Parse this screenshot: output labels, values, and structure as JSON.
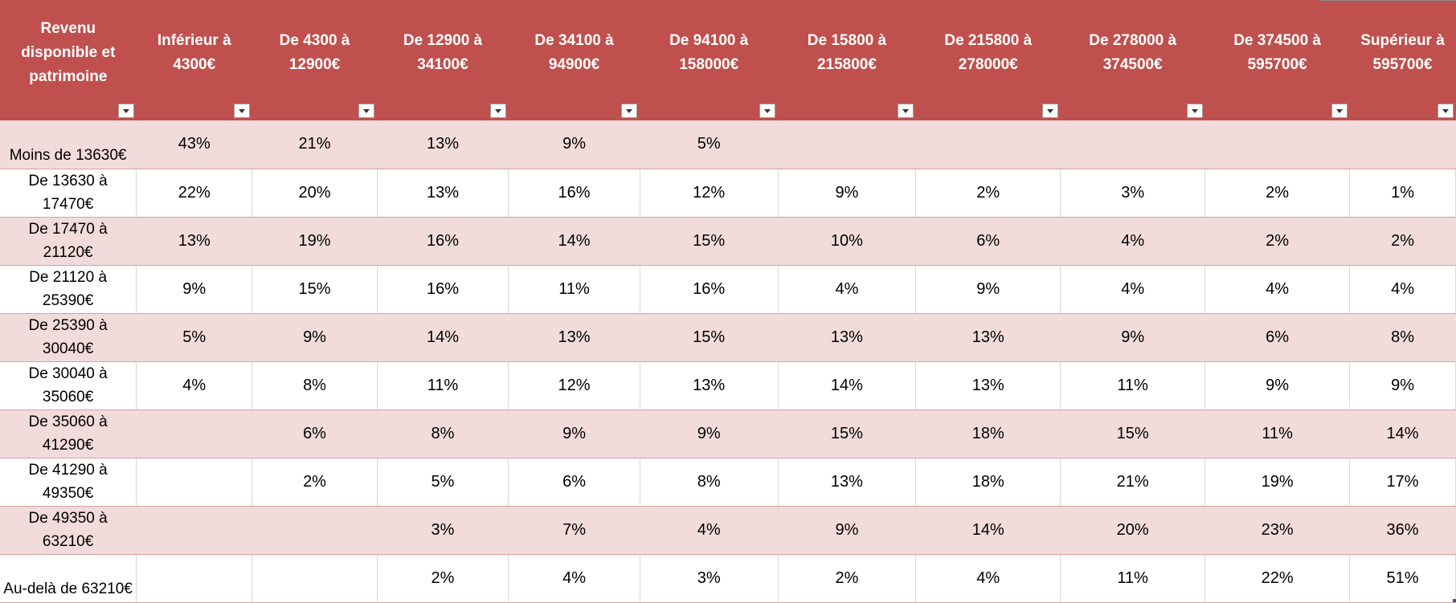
{
  "table": {
    "header_corner": "Revenu disponible et patrimoine",
    "columns": [
      "Inférieur à 4300€",
      "De 4300 à 12900€",
      "De 12900 à 34100€",
      "De 34100 à 94900€",
      "De 94100 à 158000€",
      "De 15800 à 215800€",
      "De 215800 à 278000€",
      "De 278000 à 374500€",
      "De 374500 à 595700€",
      "Supérieur à 595700€"
    ],
    "rows": [
      {
        "label": "Moins de 13630€",
        "values": [
          "43%",
          "21%",
          "13%",
          "9%",
          "5%",
          "",
          "",
          "",
          "",
          ""
        ]
      },
      {
        "label": "De 13630 à 17470€",
        "values": [
          "22%",
          "20%",
          "13%",
          "16%",
          "12%",
          "9%",
          "2%",
          "3%",
          "2%",
          "1%"
        ]
      },
      {
        "label": "De 17470 à 21120€",
        "values": [
          "13%",
          "19%",
          "16%",
          "14%",
          "15%",
          "10%",
          "6%",
          "4%",
          "2%",
          "2%"
        ]
      },
      {
        "label": "De 21120 à 25390€",
        "values": [
          "9%",
          "15%",
          "16%",
          "11%",
          "16%",
          "4%",
          "9%",
          "4%",
          "4%",
          "4%"
        ]
      },
      {
        "label": "De 25390 à 30040€",
        "values": [
          "5%",
          "9%",
          "14%",
          "13%",
          "15%",
          "13%",
          "13%",
          "9%",
          "6%",
          "8%"
        ]
      },
      {
        "label": "De 30040 à 35060€",
        "values": [
          "4%",
          "8%",
          "11%",
          "12%",
          "13%",
          "14%",
          "13%",
          "11%",
          "9%",
          "9%"
        ]
      },
      {
        "label": "De 35060 à 41290€",
        "values": [
          "",
          "6%",
          "8%",
          "9%",
          "9%",
          "15%",
          "18%",
          "15%",
          "11%",
          "14%"
        ]
      },
      {
        "label": "De 41290 à 49350€",
        "values": [
          "",
          "2%",
          "5%",
          "6%",
          "8%",
          "13%",
          "18%",
          "21%",
          "19%",
          "17%"
        ]
      },
      {
        "label": "De 49350 à 63210€",
        "values": [
          "",
          "",
          "3%",
          "7%",
          "4%",
          "9%",
          "14%",
          "20%",
          "23%",
          "36%"
        ]
      },
      {
        "label": "Au-delà de 63210€",
        "values": [
          "",
          "",
          "2%",
          "4%",
          "3%",
          "2%",
          "4%",
          "11%",
          "22%",
          "51%"
        ]
      }
    ]
  },
  "colors": {
    "header_bg": "#c0504d",
    "band_bg": "#f2dcdb"
  }
}
